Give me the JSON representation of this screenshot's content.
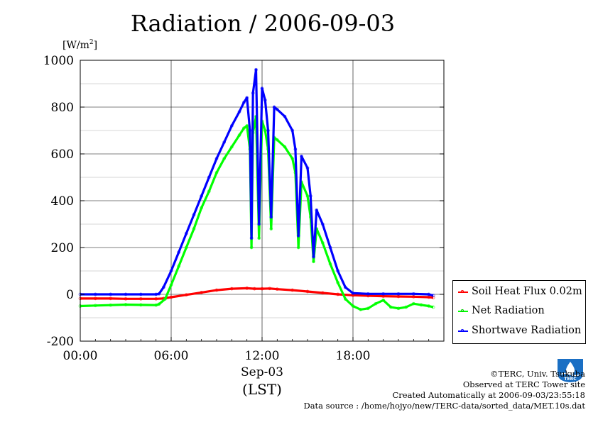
{
  "title": "Radiation / 2006-09-03",
  "chart_data": {
    "type": "line",
    "title": "Radiation / 2006-09-03",
    "ylabel_unit": "[W/m2]",
    "ylabel_unit_base": "[W/m",
    "ylabel_unit_sup": "2",
    "ylabel_unit_close": "]",
    "xlabel_date": "Sep-03",
    "xlabel_tz": "(LST)",
    "ylim": [
      -200,
      1000
    ],
    "xlim_hours": [
      0,
      24
    ],
    "yticks": [
      -200,
      0,
      200,
      400,
      600,
      800,
      1000
    ],
    "ytick_labels": [
      "-200",
      "0",
      "200",
      "400",
      "600",
      "800",
      "1000"
    ],
    "xticks_hours": [
      0,
      6,
      12,
      18
    ],
    "xtick_labels": [
      "00:00",
      "06:00",
      "12:00",
      "18:00"
    ],
    "grid": true,
    "legend_position": "lower-right-outside",
    "series": [
      {
        "name": "Soil Heat Flux 0.02m",
        "color": "#ff0000",
        "points": [
          [
            0,
            -18
          ],
          [
            1,
            -18
          ],
          [
            2,
            -18
          ],
          [
            3,
            -19
          ],
          [
            4,
            -19
          ],
          [
            5,
            -19
          ],
          [
            5.5,
            -18
          ],
          [
            6,
            -12
          ],
          [
            7,
            -2
          ],
          [
            8,
            8
          ],
          [
            9,
            18
          ],
          [
            10,
            24
          ],
          [
            11,
            26
          ],
          [
            11.5,
            24
          ],
          [
            12,
            24
          ],
          [
            12.5,
            25
          ],
          [
            13,
            22
          ],
          [
            14,
            18
          ],
          [
            15,
            12
          ],
          [
            16,
            6
          ],
          [
            17,
            0
          ],
          [
            18,
            -4
          ],
          [
            19,
            -6
          ],
          [
            20,
            -8
          ],
          [
            21,
            -9
          ],
          [
            22,
            -10
          ],
          [
            23,
            -12
          ],
          [
            23.3,
            -14
          ]
        ]
      },
      {
        "name": "Net Radiation",
        "color": "#00ff00",
        "points": [
          [
            0,
            -50
          ],
          [
            1,
            -48
          ],
          [
            2,
            -46
          ],
          [
            3,
            -44
          ],
          [
            4,
            -45
          ],
          [
            5,
            -46
          ],
          [
            5.2,
            -42
          ],
          [
            5.6,
            -20
          ],
          [
            6,
            40
          ],
          [
            6.5,
            120
          ],
          [
            7,
            200
          ],
          [
            7.5,
            280
          ],
          [
            8,
            370
          ],
          [
            8.5,
            440
          ],
          [
            9,
            520
          ],
          [
            9.5,
            580
          ],
          [
            10,
            630
          ],
          [
            10.5,
            680
          ],
          [
            10.8,
            710
          ],
          [
            11,
            720
          ],
          [
            11.2,
            620
          ],
          [
            11.3,
            200
          ],
          [
            11.4,
            690
          ],
          [
            11.6,
            760
          ],
          [
            11.8,
            240
          ],
          [
            12,
            740
          ],
          [
            12.2,
            700
          ],
          [
            12.4,
            620
          ],
          [
            12.6,
            280
          ],
          [
            12.8,
            670
          ],
          [
            13,
            660
          ],
          [
            13.5,
            630
          ],
          [
            14,
            580
          ],
          [
            14.2,
            520
          ],
          [
            14.4,
            200
          ],
          [
            14.6,
            480
          ],
          [
            15,
            420
          ],
          [
            15.2,
            330
          ],
          [
            15.4,
            140
          ],
          [
            15.6,
            280
          ],
          [
            16,
            220
          ],
          [
            16.5,
            130
          ],
          [
            17,
            50
          ],
          [
            17.5,
            -20
          ],
          [
            18,
            -50
          ],
          [
            18.5,
            -65
          ],
          [
            19,
            -60
          ],
          [
            19.5,
            -40
          ],
          [
            20,
            -25
          ],
          [
            20.5,
            -55
          ],
          [
            21,
            -60
          ],
          [
            21.5,
            -55
          ],
          [
            22,
            -40
          ],
          [
            22.5,
            -45
          ],
          [
            23,
            -50
          ],
          [
            23.3,
            -55
          ]
        ]
      },
      {
        "name": "Shortwave Radiation",
        "color": "#0000ff",
        "points": [
          [
            0,
            0
          ],
          [
            1,
            0
          ],
          [
            2,
            0
          ],
          [
            3,
            0
          ],
          [
            4,
            0
          ],
          [
            5,
            0
          ],
          [
            5.2,
            2
          ],
          [
            5.5,
            30
          ],
          [
            6,
            100
          ],
          [
            6.5,
            180
          ],
          [
            7,
            260
          ],
          [
            7.5,
            340
          ],
          [
            8,
            420
          ],
          [
            8.5,
            500
          ],
          [
            9,
            580
          ],
          [
            9.5,
            650
          ],
          [
            10,
            720
          ],
          [
            10.5,
            780
          ],
          [
            10.8,
            820
          ],
          [
            11,
            840
          ],
          [
            11.2,
            700
          ],
          [
            11.3,
            240
          ],
          [
            11.4,
            860
          ],
          [
            11.6,
            960
          ],
          [
            11.8,
            300
          ],
          [
            12,
            880
          ],
          [
            12.2,
            830
          ],
          [
            12.4,
            700
          ],
          [
            12.6,
            330
          ],
          [
            12.8,
            800
          ],
          [
            13,
            790
          ],
          [
            13.5,
            760
          ],
          [
            14,
            700
          ],
          [
            14.2,
            620
          ],
          [
            14.4,
            250
          ],
          [
            14.6,
            590
          ],
          [
            15,
            540
          ],
          [
            15.2,
            420
          ],
          [
            15.4,
            160
          ],
          [
            15.6,
            360
          ],
          [
            16,
            300
          ],
          [
            16.5,
            200
          ],
          [
            17,
            100
          ],
          [
            17.5,
            30
          ],
          [
            18,
            5
          ],
          [
            19,
            2
          ],
          [
            20,
            2
          ],
          [
            21,
            2
          ],
          [
            22,
            2
          ],
          [
            23,
            0
          ],
          [
            23.3,
            -5
          ]
        ]
      }
    ]
  },
  "legend": {
    "items": [
      {
        "label": "Soil Heat Flux 0.02m",
        "color": "#ff0000"
      },
      {
        "label": "Net Radiation",
        "color": "#00ff00"
      },
      {
        "label": "Shortwave Radiation",
        "color": "#0000ff"
      }
    ]
  },
  "credits": {
    "line1": "©TERC, Univ. Tsukuba",
    "line2": "Observed at TERC Tower site",
    "line3": "Created Automatically at 2006-09-03/23:55:18",
    "line4": "Data source : /home/hojyo/new/TERC-data/sorted_data/MET.10s.dat"
  },
  "logo": {
    "icon": "terc-logo-icon",
    "text": "TERC",
    "color": "#1a6fc4"
  }
}
